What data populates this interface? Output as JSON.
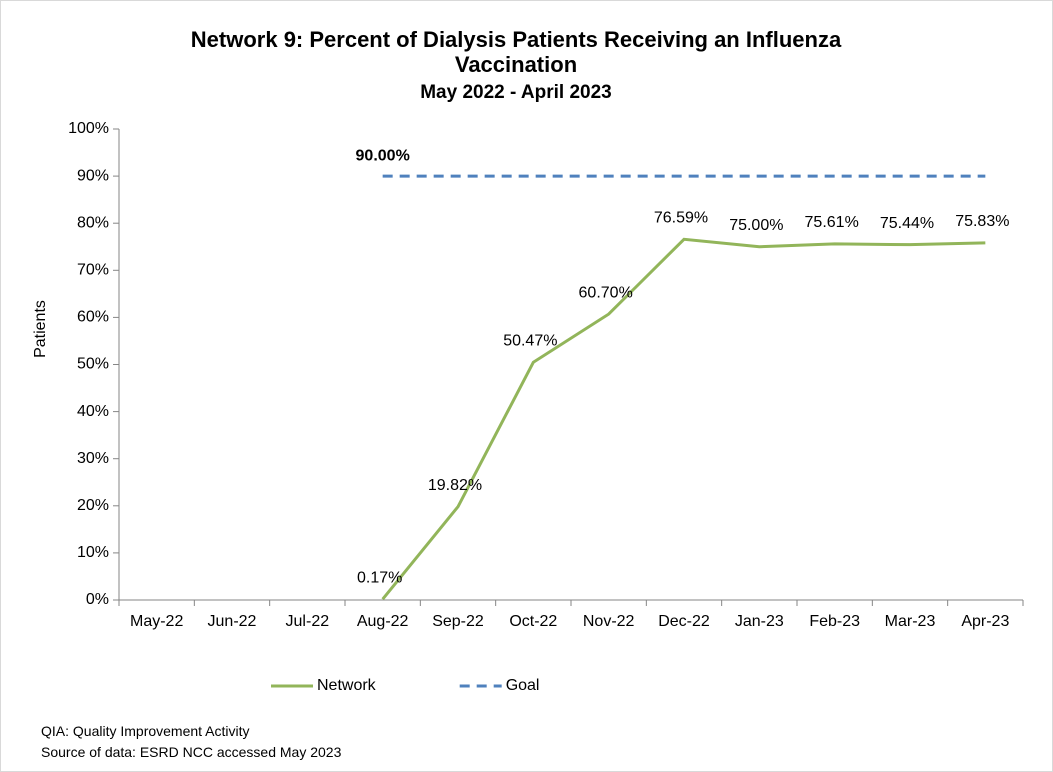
{
  "chart_data": {
    "type": "line",
    "title": "Network 9: Percent of Dialysis Patients Receiving an Influenza Vaccination",
    "subtitle": "May 2022 - April 2023",
    "y_label": "Patients",
    "categories": [
      "May-22",
      "Jun-22",
      "Jul-22",
      "Aug-22",
      "Sep-22",
      "Oct-22",
      "Nov-22",
      "Dec-22",
      "Jan-23",
      "Feb-23",
      "Mar-23",
      "Apr-23"
    ],
    "series": [
      {
        "name": "Network",
        "color": "#92b55a",
        "dashed": false,
        "values": [
          null,
          null,
          null,
          0.17,
          19.82,
          50.47,
          60.7,
          76.59,
          75.0,
          75.61,
          75.44,
          75.83
        ],
        "value_labels": [
          null,
          null,
          null,
          "0.17%",
          "19.82%",
          "50.47%",
          "60.70%",
          "76.59%",
          "75.00%",
          "75.61%",
          "75.44%",
          "75.83%"
        ]
      },
      {
        "name": "Goal",
        "color": "#4f81bd",
        "dashed": true,
        "values": [
          null,
          null,
          null,
          90,
          90,
          90,
          90,
          90,
          90,
          90,
          90,
          90
        ],
        "value_labels": [
          null,
          null,
          null,
          "90.00%",
          null,
          null,
          null,
          null,
          null,
          null,
          null,
          null
        ]
      }
    ],
    "ylim": [
      0,
      100
    ],
    "yticks": [
      {
        "value": 0,
        "label": "0%"
      },
      {
        "value": 10,
        "label": "10%"
      },
      {
        "value": 20,
        "label": "20%"
      },
      {
        "value": 30,
        "label": "30%"
      },
      {
        "value": 40,
        "label": "40%"
      },
      {
        "value": 50,
        "label": "50%"
      },
      {
        "value": 60,
        "label": "60%"
      },
      {
        "value": 70,
        "label": "70%"
      },
      {
        "value": 80,
        "label": "80%"
      },
      {
        "value": 90,
        "label": "90%"
      },
      {
        "value": 100,
        "label": "100%"
      }
    ],
    "grid": false,
    "legend": "bottom"
  },
  "footnotes": [
    "QIA:  Quality Improvement Activity",
    "Source of data:  ESRD NCC accessed May 2023"
  ]
}
